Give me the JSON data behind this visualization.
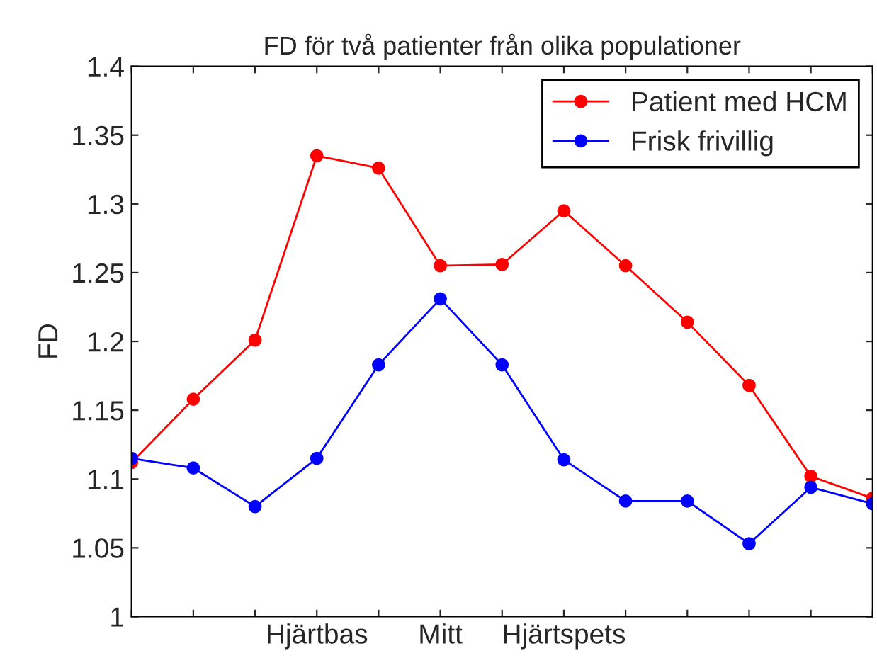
{
  "chart_data": {
    "type": "line",
    "title": "FD för två patienter från olika populationer",
    "ylabel": "FD",
    "categories": [
      null,
      null,
      null,
      "Hjärtbas",
      null,
      "Mitt",
      null,
      "Hjärtspets",
      null,
      null,
      null,
      null,
      null
    ],
    "series": [
      {
        "name": "Patient med HCM",
        "color": "#ff0000",
        "values": [
          1.112,
          1.158,
          1.201,
          1.335,
          1.326,
          1.255,
          1.256,
          1.295,
          1.255,
          1.214,
          1.168,
          1.102,
          1.086
        ]
      },
      {
        "name": "Frisk frivillig",
        "color": "#0000ff",
        "values": [
          1.115,
          1.108,
          1.08,
          1.115,
          1.183,
          1.231,
          1.183,
          1.114,
          1.084,
          1.084,
          1.053,
          1.094,
          1.082
        ]
      }
    ],
    "ylim": [
      1,
      1.4
    ],
    "yticks": [
      1,
      1.05,
      1.1,
      1.15,
      1.2,
      1.25,
      1.3,
      1.35,
      1.4
    ],
    "grid": false,
    "legend": "top right",
    "marker": "circle",
    "line_style": "solid"
  }
}
